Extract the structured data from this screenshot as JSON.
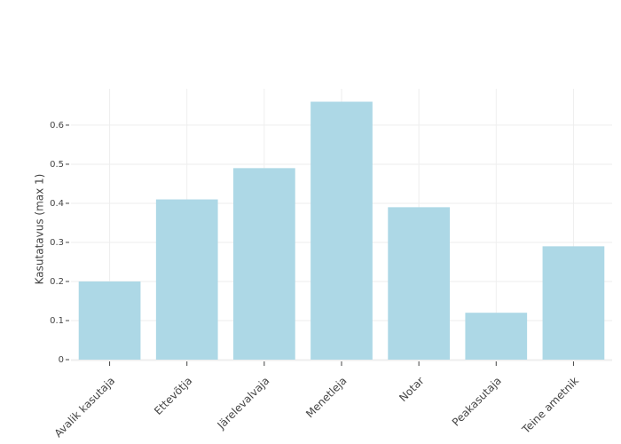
{
  "chart_data": {
    "type": "bar",
    "y_label": "Kasutatavus (max 1)",
    "categories": [
      "Avalik kasutaja",
      "Ettevõtja",
      "Järelevalvaja",
      "Menetleja",
      "Notar",
      "Peakasutaja",
      "Teine ametnik"
    ],
    "values": [
      0.2,
      0.41,
      0.49,
      0.66,
      0.39,
      0.12,
      0.29
    ],
    "color": "#add8e6",
    "ylim": [
      0,
      0.693
    ],
    "yticks": [
      0,
      0.1,
      0.2,
      0.3,
      0.4,
      0.5,
      0.6
    ],
    "grid": true
  }
}
